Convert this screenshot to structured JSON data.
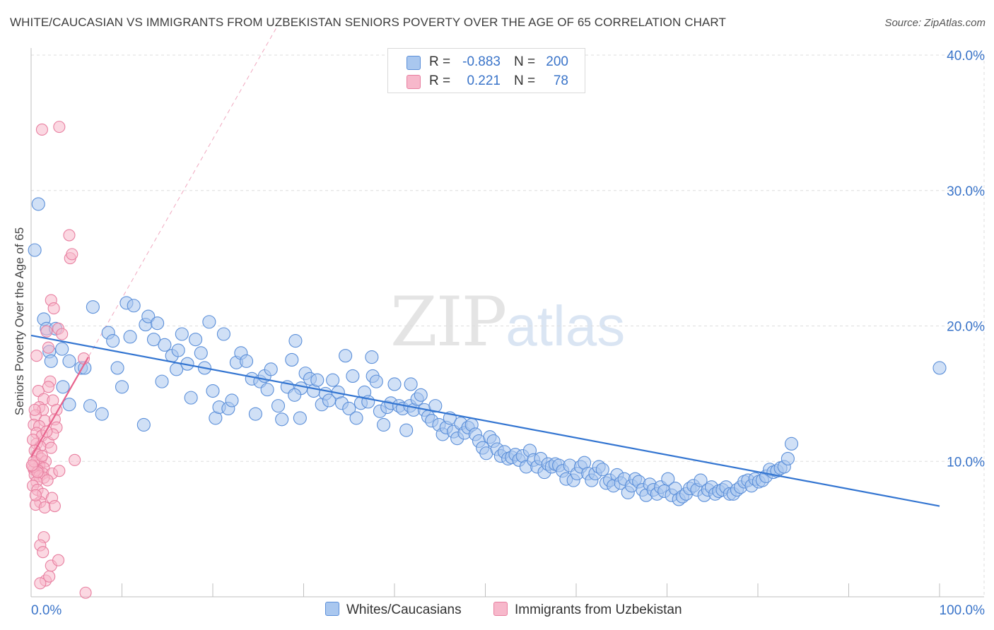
{
  "title": "WHITE/CAUCASIAN VS IMMIGRANTS FROM UZBEKISTAN SENIORS POVERTY OVER THE AGE OF 65 CORRELATION CHART",
  "source": "Source: ZipAtlas.com",
  "watermark": {
    "zip": "ZIP",
    "atlas": "atlas"
  },
  "legend": {
    "series1": {
      "r_label": "R =",
      "r_value": "-0.883",
      "n_label": "N =",
      "n_value": "200"
    },
    "series2": {
      "r_label": "R =",
      "r_value": "0.221",
      "n_label": "N =",
      "n_value": "78"
    }
  },
  "bottom_legend": {
    "series1": "Whites/Caucasians",
    "series2": "Immigrants from Uzbekistan"
  },
  "colors": {
    "blue_fill": "#a9c7ef",
    "blue_stroke": "#5b8fd9",
    "blue_line": "#3375d1",
    "pink_fill": "#f7b8cb",
    "pink_stroke": "#e87fa0",
    "pink_line": "#e8628c",
    "axis_text": "#3a74c9",
    "grid": "#dddddd"
  },
  "chart_data": {
    "type": "scatter",
    "title": "WHITE/CAUCASIAN VS IMMIGRANTS FROM UZBEKISTAN SENIORS POVERTY OVER THE AGE OF 65 CORRELATION CHART",
    "xlabel": "",
    "ylabel": "Seniors Poverty Over the Age of 65",
    "xlim": [
      0,
      100
    ],
    "ylim": [
      0,
      40
    ],
    "x_tick_labels": [
      "0.0%",
      "100.0%"
    ],
    "y_ticks": [
      10,
      20,
      30,
      40
    ],
    "y_tick_labels": [
      "10.0%",
      "20.0%",
      "30.0%",
      "40.0%"
    ],
    "grid": true,
    "series": [
      {
        "name": "Whites/Caucasians",
        "r": -0.883,
        "n": 200,
        "trend": {
          "x": [
            0,
            100
          ],
          "y": [
            19.3,
            6.7
          ]
        },
        "points": [
          [
            0.4,
            25.6
          ],
          [
            0.8,
            29.0
          ],
          [
            1.4,
            20.5
          ],
          [
            1.7,
            19.8
          ],
          [
            2.0,
            18.1
          ],
          [
            2.2,
            17.4
          ],
          [
            2.7,
            19.8
          ],
          [
            3.4,
            18.3
          ],
          [
            3.5,
            15.5
          ],
          [
            4.2,
            17.4
          ],
          [
            4.2,
            14.2
          ],
          [
            5.5,
            16.9
          ],
          [
            5.9,
            16.9
          ],
          [
            6.5,
            14.1
          ],
          [
            6.8,
            21.4
          ],
          [
            7.8,
            13.5
          ],
          [
            8.5,
            19.5
          ],
          [
            9.0,
            18.9
          ],
          [
            9.5,
            16.9
          ],
          [
            10.0,
            15.5
          ],
          [
            10.5,
            21.7
          ],
          [
            10.9,
            19.2
          ],
          [
            11.3,
            21.5
          ],
          [
            12.4,
            12.7
          ],
          [
            12.6,
            20.1
          ],
          [
            12.9,
            20.7
          ],
          [
            13.5,
            19.0
          ],
          [
            13.9,
            20.2
          ],
          [
            14.4,
            15.9
          ],
          [
            14.7,
            18.6
          ],
          [
            15.5,
            17.8
          ],
          [
            16.0,
            16.8
          ],
          [
            16.2,
            18.2
          ],
          [
            16.6,
            19.4
          ],
          [
            17.2,
            17.2
          ],
          [
            17.6,
            14.7
          ],
          [
            18.1,
            19.0
          ],
          [
            18.7,
            18.0
          ],
          [
            19.1,
            16.9
          ],
          [
            19.6,
            20.3
          ],
          [
            20.0,
            15.2
          ],
          [
            20.3,
            13.2
          ],
          [
            20.7,
            14.0
          ],
          [
            21.2,
            19.4
          ],
          [
            21.7,
            13.9
          ],
          [
            22.1,
            14.5
          ],
          [
            22.6,
            17.3
          ],
          [
            23.1,
            18.0
          ],
          [
            23.7,
            17.4
          ],
          [
            24.3,
            16.1
          ],
          [
            24.7,
            13.5
          ],
          [
            25.2,
            15.9
          ],
          [
            25.7,
            16.3
          ],
          [
            26.0,
            15.3
          ],
          [
            26.4,
            16.8
          ],
          [
            27.2,
            14.1
          ],
          [
            27.6,
            13.1
          ],
          [
            28.2,
            15.5
          ],
          [
            28.7,
            17.5
          ],
          [
            29.1,
            18.9
          ],
          [
            29.6,
            13.2
          ],
          [
            29.7,
            15.4
          ],
          [
            30.2,
            16.5
          ],
          [
            30.7,
            16.1
          ],
          [
            31.1,
            15.2
          ],
          [
            31.5,
            16.0
          ],
          [
            32.0,
            14.2
          ],
          [
            32.4,
            15.0
          ],
          [
            32.8,
            14.5
          ],
          [
            33.2,
            16.0
          ],
          [
            33.8,
            15.1
          ],
          [
            34.2,
            14.3
          ],
          [
            34.6,
            17.8
          ],
          [
            35.0,
            13.9
          ],
          [
            35.4,
            16.3
          ],
          [
            35.8,
            13.2
          ],
          [
            36.3,
            14.3
          ],
          [
            36.7,
            15.1
          ],
          [
            37.1,
            14.4
          ],
          [
            37.6,
            16.3
          ],
          [
            38.0,
            15.9
          ],
          [
            38.4,
            13.7
          ],
          [
            38.8,
            12.7
          ],
          [
            39.2,
            14.0
          ],
          [
            39.6,
            14.3
          ],
          [
            40.0,
            15.7
          ],
          [
            40.5,
            14.1
          ],
          [
            40.9,
            13.9
          ],
          [
            41.3,
            12.3
          ],
          [
            41.7,
            14.1
          ],
          [
            42.1,
            13.8
          ],
          [
            42.5,
            14.6
          ],
          [
            42.9,
            14.9
          ],
          [
            43.3,
            13.8
          ],
          [
            43.7,
            13.3
          ],
          [
            44.1,
            13.0
          ],
          [
            44.5,
            14.1
          ],
          [
            44.9,
            12.7
          ],
          [
            45.3,
            12.0
          ],
          [
            45.7,
            12.5
          ],
          [
            46.1,
            13.2
          ],
          [
            46.5,
            12.2
          ],
          [
            46.9,
            11.7
          ],
          [
            47.3,
            12.8
          ],
          [
            47.7,
            12.1
          ],
          [
            48.1,
            12.5
          ],
          [
            48.5,
            12.7
          ],
          [
            48.9,
            12.0
          ],
          [
            49.3,
            11.5
          ],
          [
            49.7,
            11.0
          ],
          [
            50.1,
            10.6
          ],
          [
            50.5,
            11.8
          ],
          [
            50.9,
            11.5
          ],
          [
            51.3,
            10.9
          ],
          [
            51.7,
            10.4
          ],
          [
            52.1,
            10.7
          ],
          [
            52.5,
            10.2
          ],
          [
            52.9,
            10.3
          ],
          [
            53.3,
            10.5
          ],
          [
            53.7,
            10.1
          ],
          [
            54.1,
            10.4
          ],
          [
            54.5,
            9.6
          ],
          [
            54.9,
            10.8
          ],
          [
            55.3,
            10.1
          ],
          [
            55.7,
            9.6
          ],
          [
            56.1,
            10.2
          ],
          [
            56.5,
            9.2
          ],
          [
            56.9,
            9.8
          ],
          [
            57.3,
            9.6
          ],
          [
            57.7,
            9.8
          ],
          [
            58.1,
            9.7
          ],
          [
            58.5,
            9.3
          ],
          [
            58.9,
            8.7
          ],
          [
            59.3,
            9.7
          ],
          [
            59.7,
            8.6
          ],
          [
            60.1,
            9.1
          ],
          [
            60.5,
            9.6
          ],
          [
            60.9,
            9.9
          ],
          [
            61.3,
            9.1
          ],
          [
            61.7,
            8.6
          ],
          [
            62.1,
            9.1
          ],
          [
            62.5,
            9.6
          ],
          [
            62.9,
            9.4
          ],
          [
            63.3,
            8.4
          ],
          [
            63.7,
            8.6
          ],
          [
            64.1,
            8.2
          ],
          [
            64.5,
            9.0
          ],
          [
            64.9,
            8.4
          ],
          [
            65.3,
            8.7
          ],
          [
            65.7,
            7.7
          ],
          [
            66.1,
            8.2
          ],
          [
            66.5,
            8.7
          ],
          [
            66.9,
            8.5
          ],
          [
            67.3,
            7.9
          ],
          [
            67.7,
            7.5
          ],
          [
            68.1,
            8.3
          ],
          [
            68.5,
            7.9
          ],
          [
            68.9,
            7.6
          ],
          [
            69.3,
            8.1
          ],
          [
            69.7,
            7.8
          ],
          [
            70.1,
            8.7
          ],
          [
            70.5,
            7.5
          ],
          [
            70.9,
            8.0
          ],
          [
            71.3,
            7.2
          ],
          [
            71.7,
            7.4
          ],
          [
            72.1,
            7.6
          ],
          [
            72.5,
            8.0
          ],
          [
            72.9,
            8.2
          ],
          [
            73.3,
            7.9
          ],
          [
            73.7,
            8.6
          ],
          [
            74.1,
            7.5
          ],
          [
            74.5,
            7.9
          ],
          [
            74.9,
            8.1
          ],
          [
            75.3,
            7.6
          ],
          [
            75.7,
            7.8
          ],
          [
            76.1,
            7.9
          ],
          [
            76.5,
            8.1
          ],
          [
            76.9,
            7.6
          ],
          [
            77.3,
            7.6
          ],
          [
            77.7,
            7.9
          ],
          [
            78.1,
            8.1
          ],
          [
            78.5,
            8.5
          ],
          [
            78.9,
            8.6
          ],
          [
            79.3,
            8.2
          ],
          [
            79.7,
            8.7
          ],
          [
            80.1,
            8.5
          ],
          [
            80.5,
            8.6
          ],
          [
            80.9,
            8.9
          ],
          [
            81.3,
            9.4
          ],
          [
            81.7,
            9.2
          ],
          [
            82.1,
            9.3
          ],
          [
            82.5,
            9.5
          ],
          [
            82.9,
            9.6
          ],
          [
            83.3,
            10.2
          ],
          [
            83.7,
            11.3
          ],
          [
            100.0,
            16.9
          ],
          [
            37.5,
            17.7
          ],
          [
            29.0,
            14.9
          ],
          [
            41.8,
            15.7
          ]
        ]
      },
      {
        "name": "Immigrants from Uzbekistan",
        "r": 0.221,
        "n": 78,
        "trend": {
          "x": [
            0,
            6.3
          ],
          "y": [
            10.3,
            17.7
          ]
        },
        "points": [
          [
            1.2,
            34.5
          ],
          [
            3.1,
            34.7
          ],
          [
            4.2,
            26.7
          ],
          [
            2.2,
            21.9
          ],
          [
            2.5,
            21.3
          ],
          [
            4.3,
            25.0
          ],
          [
            4.5,
            25.3
          ],
          [
            1.7,
            19.6
          ],
          [
            3.0,
            19.8
          ],
          [
            3.4,
            19.4
          ],
          [
            1.9,
            18.4
          ],
          [
            0.6,
            17.8
          ],
          [
            5.8,
            17.6
          ],
          [
            2.1,
            15.9
          ],
          [
            1.9,
            15.5
          ],
          [
            0.8,
            15.2
          ],
          [
            1.4,
            14.6
          ],
          [
            0.9,
            14.0
          ],
          [
            2.4,
            14.5
          ],
          [
            1.3,
            13.8
          ],
          [
            2.8,
            13.8
          ],
          [
            0.5,
            13.4
          ],
          [
            1.5,
            13.0
          ],
          [
            2.6,
            13.1
          ],
          [
            0.3,
            12.7
          ],
          [
            0.9,
            12.6
          ],
          [
            2.8,
            12.5
          ],
          [
            0.6,
            12.1
          ],
          [
            1.2,
            11.9
          ],
          [
            1.9,
            11.4
          ],
          [
            0.6,
            11.3
          ],
          [
            1.0,
            11.1
          ],
          [
            2.2,
            11.0
          ],
          [
            0.4,
            10.8
          ],
          [
            0.7,
            10.5
          ],
          [
            1.1,
            10.2
          ],
          [
            1.6,
            10.0
          ],
          [
            0.5,
            9.9
          ],
          [
            0.9,
            9.7
          ],
          [
            1.4,
            9.5
          ],
          [
            0.3,
            9.4
          ],
          [
            0.8,
            9.3
          ],
          [
            1.3,
            9.1
          ],
          [
            2.3,
            9.1
          ],
          [
            0.4,
            9.0
          ],
          [
            0.9,
            8.9
          ],
          [
            1.4,
            8.8
          ],
          [
            0.6,
            8.5
          ],
          [
            0.2,
            8.2
          ],
          [
            0.7,
            7.9
          ],
          [
            1.3,
            7.6
          ],
          [
            2.3,
            7.3
          ],
          [
            1.0,
            7.0
          ],
          [
            0.5,
            6.8
          ],
          [
            1.5,
            6.6
          ],
          [
            2.6,
            6.7
          ],
          [
            4.8,
            10.1
          ],
          [
            3.1,
            9.3
          ],
          [
            0.2,
            9.6
          ],
          [
            0.5,
            7.5
          ],
          [
            1.4,
            4.4
          ],
          [
            1.0,
            3.8
          ],
          [
            1.3,
            3.3
          ],
          [
            2.2,
            2.3
          ],
          [
            3.0,
            2.7
          ],
          [
            1.6,
            1.2
          ],
          [
            1.0,
            1.0
          ],
          [
            2.0,
            1.5
          ],
          [
            6.0,
            0.3
          ],
          [
            0.4,
            13.8
          ],
          [
            0.2,
            11.6
          ],
          [
            0.3,
            10.0
          ],
          [
            2.4,
            12.0
          ],
          [
            0.7,
            9.2
          ],
          [
            1.2,
            10.4
          ],
          [
            0.1,
            9.7
          ],
          [
            1.8,
            8.6
          ],
          [
            1.7,
            12.2
          ]
        ]
      }
    ]
  }
}
